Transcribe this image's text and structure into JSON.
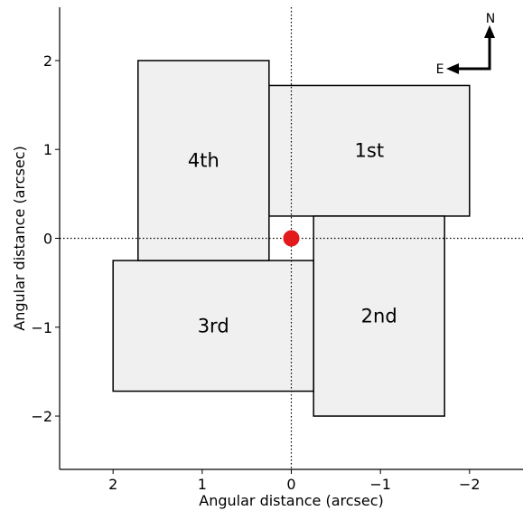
{
  "chart_data": {
    "type": "diagram",
    "xlabel": "Angular distance (arcsec)",
    "ylabel": "Angular distance (arcsec)",
    "xlim": [
      2.6,
      -2.6
    ],
    "ylim": [
      -2.6,
      2.6
    ],
    "x_inverted": true,
    "x_ticks": [
      2,
      1,
      0,
      -1,
      -2
    ],
    "y_ticks": [
      -2,
      -1,
      0,
      1,
      2
    ],
    "x_tick_labels": [
      "2",
      "1",
      "0",
      "−1",
      "−2"
    ],
    "y_tick_labels": [
      "−2",
      "−1",
      "0",
      "1",
      "2"
    ],
    "reference_lines": {
      "x": 0,
      "y": 0,
      "style": "dotted"
    },
    "rectangles": [
      {
        "label": "1st",
        "x0": 0.25,
        "x1": -2.0,
        "y0": 0.25,
        "y1": 1.72
      },
      {
        "label": "2nd",
        "x0": -0.25,
        "x1": -1.72,
        "y0": -2.0,
        "y1": 0.25
      },
      {
        "label": "3rd",
        "x0": 2.0,
        "x1": -0.25,
        "y0": -1.72,
        "y1": -0.25
      },
      {
        "label": "4th",
        "x0": 1.72,
        "x1": 0.25,
        "y0": -0.25,
        "y1": 2.0
      }
    ],
    "marker": {
      "x": 0,
      "y": 0,
      "color": "#e31a1c",
      "shape": "circle"
    },
    "compass": {
      "north": "N",
      "east": "E",
      "placement": "top-right"
    },
    "colors": {
      "rect_fill": "#f0f0f0",
      "rect_stroke": "#000000"
    }
  }
}
